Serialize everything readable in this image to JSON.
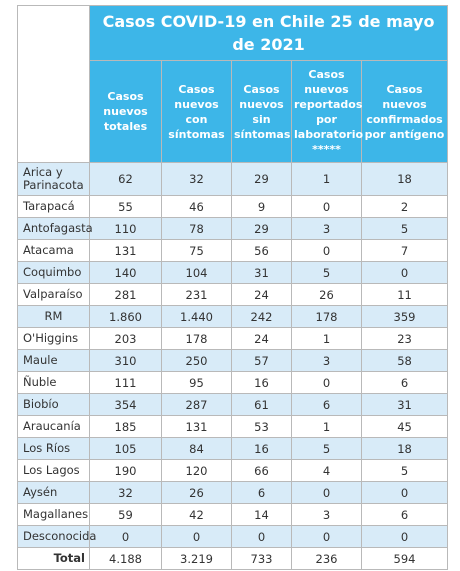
{
  "title": "Casos COVID-19 en Chile 25 de mayo de 2021",
  "columns": [
    "Casos nuevos totales",
    "Casos nuevos con síntomas",
    "Casos nuevos sin síntomas",
    "Casos nuevos reportados por laboratorio *****",
    "Casos nuevos confirmados por antígeno"
  ],
  "rows": [
    {
      "region": "Arica y Parinacota",
      "values": [
        "62",
        "32",
        "29",
        "1",
        "18"
      ]
    },
    {
      "region": "Tarapacá",
      "values": [
        "55",
        "46",
        "9",
        "0",
        "2"
      ]
    },
    {
      "region": "Antofagasta",
      "values": [
        "110",
        "78",
        "29",
        "3",
        "5"
      ]
    },
    {
      "region": "Atacama",
      "values": [
        "131",
        "75",
        "56",
        "0",
        "7"
      ]
    },
    {
      "region": "Coquimbo",
      "values": [
        "140",
        "104",
        "31",
        "5",
        "0"
      ]
    },
    {
      "region": "Valparaíso",
      "values": [
        "281",
        "231",
        "24",
        "26",
        "11"
      ]
    },
    {
      "region": "RM",
      "values": [
        "1.860",
        "1.440",
        "242",
        "178",
        "359"
      ]
    },
    {
      "region": "O'Higgins",
      "values": [
        "203",
        "178",
        "24",
        "1",
        "23"
      ]
    },
    {
      "region": "Maule",
      "values": [
        "310",
        "250",
        "57",
        "3",
        "58"
      ]
    },
    {
      "region": "Ñuble",
      "values": [
        "111",
        "95",
        "16",
        "0",
        "6"
      ]
    },
    {
      "region": "Biobío",
      "values": [
        "354",
        "287",
        "61",
        "6",
        "31"
      ]
    },
    {
      "region": "Araucanía",
      "values": [
        "185",
        "131",
        "53",
        "1",
        "45"
      ]
    },
    {
      "region": "Los Ríos",
      "values": [
        "105",
        "84",
        "16",
        "5",
        "18"
      ]
    },
    {
      "region": "Los Lagos",
      "values": [
        "190",
        "120",
        "66",
        "4",
        "5"
      ]
    },
    {
      "region": "Aysén",
      "values": [
        "32",
        "26",
        "6",
        "0",
        "0"
      ]
    },
    {
      "region": "Magallanes",
      "values": [
        "59",
        "42",
        "14",
        "3",
        "6"
      ]
    },
    {
      "region": "Desconocida",
      "values": [
        "0",
        "0",
        "0",
        "0",
        "0"
      ]
    }
  ],
  "total": {
    "label": "Total",
    "values": [
      "4.188",
      "3.219",
      "733",
      "236",
      "594"
    ]
  }
}
